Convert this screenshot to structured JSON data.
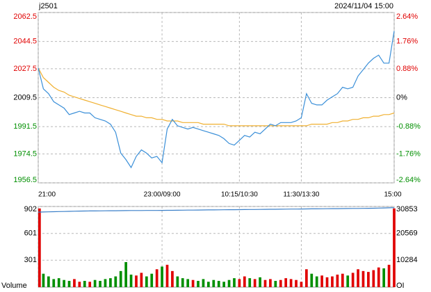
{
  "chart_data": [
    {
      "type": "line",
      "title": "j2501",
      "subtitle": "2024/11/04 15:00",
      "xlim": [
        0,
        69
      ],
      "xticks": [
        {
          "value": 0,
          "label": "21:00"
        },
        {
          "value": 24,
          "label": "23:00/09:00"
        },
        {
          "value": 39,
          "label": "10:15/10:30"
        },
        {
          "value": 51,
          "label": "11:30/13:30"
        },
        {
          "value": 69,
          "label": "15:00"
        }
      ],
      "ylim": [
        1956.5,
        2062.5
      ],
      "yticks": [
        1956.5,
        1974.5,
        1991.5,
        2009.5,
        2027.5,
        2044.5,
        2062.5
      ],
      "y2ticks": [
        {
          "value": 1956.5,
          "label": "-2.64%"
        },
        {
          "value": 1974.5,
          "label": "-1.76%"
        },
        {
          "value": 1991.5,
          "label": "-0.88%"
        },
        {
          "value": 2009.5,
          "label": "0%"
        },
        {
          "value": 2027.5,
          "label": "0.88%"
        },
        {
          "value": 2044.5,
          "label": "1.76%"
        },
        {
          "value": 2062.5,
          "label": "2.64%"
        }
      ],
      "baseline": 2009.5,
      "up_color": "#e00000",
      "down_color": "#008f00",
      "flat_color": "#000000",
      "grid": true,
      "series": [
        {
          "color": "#3a8fd8",
          "values": [
            2028,
            2015,
            2012,
            2007,
            2005,
            2003,
            1999,
            2000,
            2001,
            2000,
            2000,
            1997,
            1996,
            1995,
            1993,
            1988,
            1975,
            1971,
            1966,
            1973,
            1977,
            1975,
            1972,
            1973,
            1969,
            1990,
            1996,
            1992,
            1991,
            1990,
            1991,
            1990,
            1989,
            1988,
            1987,
            1986,
            1984,
            1981,
            1980,
            1983,
            1986,
            1985,
            1988,
            1987,
            1990,
            1993,
            1992,
            1994,
            1994,
            1994,
            1995,
            1997,
            2012,
            2006,
            2005,
            2005,
            2008,
            2010,
            2012,
            2016,
            2015,
            2016,
            2023,
            2027,
            2031,
            2034,
            2036,
            2031,
            2031,
            2051
          ]
        },
        {
          "color": "#f0b030",
          "values": [
            2028,
            2022,
            2019,
            2016,
            2014,
            2013,
            2011,
            2010,
            2009,
            2008,
            2007,
            2006,
            2005,
            2004,
            2003,
            2002,
            2001,
            2000,
            1999,
            1998,
            1998,
            1997,
            1997,
            1996,
            1996,
            1995,
            1995,
            1995,
            1994,
            1994,
            1994,
            1994,
            1993,
            1993,
            1993,
            1993,
            1993,
            1992,
            1992,
            1992,
            1992,
            1992,
            1992,
            1992,
            1992,
            1992,
            1992,
            1992,
            1992,
            1992,
            1992,
            1992,
            1992,
            1993,
            1993,
            1993,
            1993,
            1994,
            1994,
            1995,
            1995,
            1996,
            1996,
            1997,
            1997,
            1998,
            1998,
            1999,
            1999,
            2000
          ]
        }
      ]
    },
    {
      "type": "bar",
      "xlim": [
        0,
        69
      ],
      "ylim": [
        0,
        902
      ],
      "yticks": [
        301,
        601,
        902
      ],
      "y2lim": [
        0,
        30853
      ],
      "y2ticks": [
        10284,
        20569,
        30853
      ],
      "grid": true,
      "series": [
        {
          "name": "Volume",
          "up_color": "#e00000",
          "down_color": "#008f00",
          "values": [
            880,
            150,
            120,
            90,
            100,
            80,
            70,
            90,
            60,
            70,
            60,
            80,
            70,
            90,
            100,
            120,
            180,
            280,
            140,
            130,
            160,
            120,
            150,
            200,
            230,
            250,
            180,
            120,
            100,
            90,
            80,
            70,
            90,
            60,
            80,
            70,
            60,
            80,
            100,
            90,
            120,
            100,
            90,
            110,
            80,
            90,
            70,
            80,
            100,
            90,
            80,
            60,
            200,
            150,
            120,
            130,
            110,
            120,
            140,
            150,
            130,
            160,
            200,
            180,
            170,
            190,
            220,
            210,
            250,
            880
          ]
        },
        {
          "name": "OI",
          "axis": "y2",
          "color": "#3a7fc8",
          "values": [
            28700,
            28750,
            28800,
            28850,
            28900,
            28950,
            29000,
            29050,
            29100,
            29120,
            29140,
            29160,
            29180,
            29200,
            29220,
            29240,
            29260,
            29280,
            29300,
            29310,
            29320,
            29330,
            29340,
            29350,
            29360,
            29380,
            29400,
            29420,
            29440,
            29460,
            29480,
            29500,
            29520,
            29540,
            29560,
            29580,
            29600,
            29620,
            29640,
            29660,
            29680,
            29700,
            29720,
            29740,
            29760,
            29780,
            29800,
            29820,
            29840,
            29860,
            29880,
            29900,
            29920,
            29940,
            29960,
            29980,
            30000,
            30020,
            30040,
            30060,
            30080,
            30100,
            30120,
            30140,
            30160,
            30200,
            30250,
            30300,
            30350,
            30400
          ]
        }
      ]
    }
  ]
}
